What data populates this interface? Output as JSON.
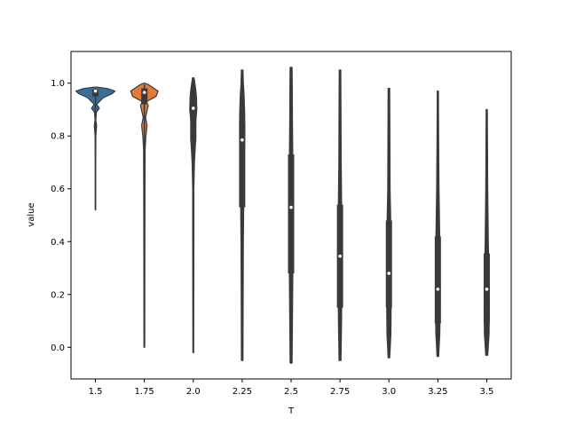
{
  "chart_data": {
    "type": "violin",
    "title": "",
    "xlabel": "T",
    "ylabel": "value",
    "ylim": [
      -0.12,
      1.12
    ],
    "yticks": [
      "0.0",
      "0.2",
      "0.4",
      "0.6",
      "0.8",
      "1.0"
    ],
    "categories": [
      "1.5",
      "1.75",
      "2.0",
      "2.25",
      "2.5",
      "2.75",
      "3.0",
      "3.25",
      "3.5"
    ],
    "grid": false,
    "colors": [
      "#3a6e99",
      "#e07b39",
      "#3a3a3a",
      "#3a3a3a",
      "#3a3a3a",
      "#3a3a3a",
      "#3a3a3a",
      "#3a3a3a",
      "#3a3a3a"
    ],
    "series": [
      {
        "min": 0.52,
        "q1": 0.95,
        "median": 0.97,
        "q3": 0.975,
        "max": 0.98,
        "profile": [
          [
            0.52,
            0.01
          ],
          [
            0.7,
            0.012
          ],
          [
            0.8,
            0.02
          ],
          [
            0.84,
            0.06
          ],
          [
            0.86,
            0.02
          ],
          [
            0.89,
            0.05
          ],
          [
            0.905,
            0.2
          ],
          [
            0.92,
            0.06
          ],
          [
            0.945,
            0.4
          ],
          [
            0.96,
            0.85
          ],
          [
            0.97,
            1.0
          ],
          [
            0.98,
            0.6
          ],
          [
            0.985,
            0.1
          ]
        ]
      },
      {
        "min": 0.0,
        "q1": 0.92,
        "median": 0.965,
        "q3": 0.98,
        "max": 0.995,
        "profile": [
          [
            0.0,
            0.02
          ],
          [
            0.5,
            0.03
          ],
          [
            0.75,
            0.04
          ],
          [
            0.8,
            0.08
          ],
          [
            0.84,
            0.14
          ],
          [
            0.87,
            0.06
          ],
          [
            0.9,
            0.15
          ],
          [
            0.915,
            0.2
          ],
          [
            0.93,
            0.1
          ],
          [
            0.95,
            0.6
          ],
          [
            0.97,
            0.7
          ],
          [
            0.985,
            0.4
          ],
          [
            0.995,
            0.2
          ],
          [
            1.0,
            0.02
          ]
        ]
      },
      {
        "min": -0.02,
        "q1": 0.78,
        "median": 0.905,
        "q3": 0.97,
        "max": 1.02,
        "profile": [
          [
            -0.02,
            0.02
          ],
          [
            0.4,
            0.03
          ],
          [
            0.6,
            0.03
          ],
          [
            0.7,
            0.06
          ],
          [
            0.78,
            0.12
          ],
          [
            0.85,
            0.12
          ],
          [
            0.9,
            0.18
          ],
          [
            0.95,
            0.16
          ],
          [
            0.98,
            0.12
          ],
          [
            1.02,
            0.04
          ]
        ]
      },
      {
        "min": -0.05,
        "q1": 0.53,
        "median": 0.785,
        "q3": 0.85,
        "max": 1.05,
        "profile": [
          [
            -0.05,
            0.04
          ],
          [
            0.2,
            0.05
          ],
          [
            0.4,
            0.06
          ],
          [
            0.55,
            0.08
          ],
          [
            0.7,
            0.1
          ],
          [
            0.8,
            0.13
          ],
          [
            0.88,
            0.13
          ],
          [
            0.95,
            0.1
          ],
          [
            1.0,
            0.06
          ],
          [
            1.05,
            0.04
          ]
        ]
      },
      {
        "min": -0.06,
        "q1": 0.28,
        "median": 0.53,
        "q3": 0.73,
        "max": 1.06,
        "profile": [
          [
            -0.06,
            0.05
          ],
          [
            0.1,
            0.07
          ],
          [
            0.3,
            0.09
          ],
          [
            0.5,
            0.09
          ],
          [
            0.7,
            0.09
          ],
          [
            0.85,
            0.07
          ],
          [
            1.0,
            0.06
          ],
          [
            1.06,
            0.05
          ]
        ]
      },
      {
        "min": -0.05,
        "q1": 0.15,
        "median": 0.345,
        "q3": 0.54,
        "max": 1.05,
        "profile": [
          [
            -0.05,
            0.05
          ],
          [
            0.1,
            0.08
          ],
          [
            0.3,
            0.1
          ],
          [
            0.5,
            0.09
          ],
          [
            0.7,
            0.06
          ],
          [
            0.9,
            0.05
          ],
          [
            1.05,
            0.04
          ]
        ]
      },
      {
        "min": -0.04,
        "q1": 0.15,
        "median": 0.28,
        "q3": 0.48,
        "max": 0.98,
        "profile": [
          [
            -0.04,
            0.04
          ],
          [
            0.05,
            0.1
          ],
          [
            0.2,
            0.12
          ],
          [
            0.3,
            0.11
          ],
          [
            0.45,
            0.1
          ],
          [
            0.6,
            0.06
          ],
          [
            0.8,
            0.05
          ],
          [
            0.98,
            0.04
          ]
        ]
      },
      {
        "min": -0.035,
        "q1": 0.09,
        "median": 0.22,
        "q3": 0.42,
        "max": 0.97,
        "profile": [
          [
            -0.035,
            0.04
          ],
          [
            0.05,
            0.1
          ],
          [
            0.15,
            0.12
          ],
          [
            0.25,
            0.12
          ],
          [
            0.4,
            0.1
          ],
          [
            0.6,
            0.06
          ],
          [
            0.8,
            0.04
          ],
          [
            0.97,
            0.03
          ]
        ]
      },
      {
        "min": -0.03,
        "q1": 0.09,
        "median": 0.22,
        "q3": 0.355,
        "max": 0.9,
        "profile": [
          [
            -0.03,
            0.05
          ],
          [
            0.05,
            0.12
          ],
          [
            0.15,
            0.13
          ],
          [
            0.25,
            0.12
          ],
          [
            0.4,
            0.08
          ],
          [
            0.6,
            0.05
          ],
          [
            0.75,
            0.04
          ],
          [
            0.9,
            0.03
          ]
        ]
      }
    ]
  }
}
